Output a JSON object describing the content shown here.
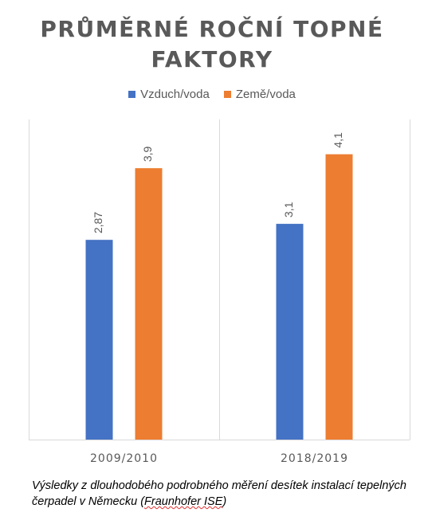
{
  "chart_data": {
    "type": "bar",
    "title_line1": "PRŮMĚRNÉ ROČNÍ TOPNÉ",
    "title_line2": "FAKTORY",
    "categories": [
      "2009/2010",
      "2018/2019"
    ],
    "series": [
      {
        "name": "Vzduch/voda",
        "color": "#4472c4",
        "values": [
          2.87,
          3.1
        ],
        "labels": [
          "2,87",
          "3,1"
        ]
      },
      {
        "name": "Země/voda",
        "color": "#ed7d31",
        "values": [
          3.9,
          4.1
        ],
        "labels": [
          "3,9",
          "4,1"
        ]
      }
    ],
    "ylim": [
      0,
      4.6
    ],
    "grid": false,
    "legend_position": "top"
  },
  "caption": {
    "text_main": "Výsledky z dlouhodobého podrobného měření desítek instalací tepelných čerpadel v Německu (",
    "source": "Fraunhofer ISE",
    "text_end": ")"
  }
}
